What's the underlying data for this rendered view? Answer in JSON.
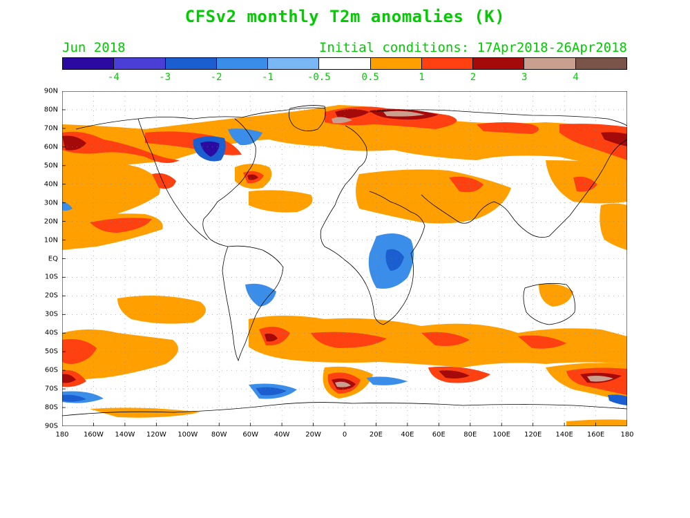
{
  "title": "CFSv2 monthly T2m anomalies (K)",
  "subtitle_left": "Jun 2018",
  "subtitle_right": "Initial conditions: 17Apr2018-26Apr2018",
  "colorbar": {
    "colors": [
      "#2a0aa0",
      "#4a3ed6",
      "#1a5ecf",
      "#3a8eea",
      "#7ab7f5",
      "#ffffff",
      "#ffa000",
      "#ff4010",
      "#a50a0a",
      "#c9a090",
      "#7a5448"
    ],
    "labels": [
      "-4",
      "-3",
      "-2",
      "-1",
      "-0.5",
      "0.5",
      "1",
      "2",
      "3",
      "4"
    ]
  },
  "lat_labels": [
    "90N",
    "80N",
    "70N",
    "60N",
    "50N",
    "40N",
    "30N",
    "20N",
    "10N",
    "EQ",
    "10S",
    "20S",
    "30S",
    "40S",
    "50S",
    "60S",
    "70S",
    "80S",
    "90S"
  ],
  "lon_labels": [
    "180",
    "160W",
    "140W",
    "120W",
    "100W",
    "80W",
    "60W",
    "40W",
    "20W",
    "0",
    "20E",
    "40E",
    "60E",
    "80E",
    "100E",
    "120E",
    "140E",
    "160E",
    "180"
  ]
}
